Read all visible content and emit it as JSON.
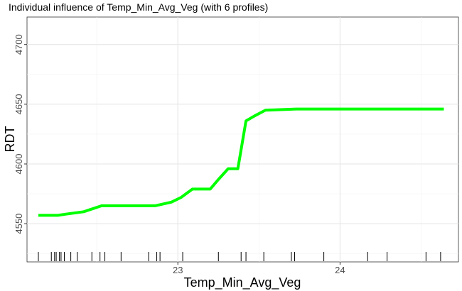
{
  "chart_data": {
    "type": "line",
    "title": "Individual influence of Temp_Min_Avg_Veg (with 6 profiles)",
    "xlabel": "Temp_Min_Avg_Veg",
    "ylabel": "RDT",
    "xlim": [
      22.07,
      24.73
    ],
    "ylim": [
      4518,
      4723
    ],
    "x_ticks": [
      23,
      24
    ],
    "x_tick_labels": [
      "23",
      "24"
    ],
    "x_minor_ticks": [
      22.5,
      23.5,
      24.5
    ],
    "y_ticks": [
      4550,
      4600,
      4650,
      4700
    ],
    "y_tick_labels": [
      "4550",
      "4600",
      "4650",
      "4700"
    ],
    "y_minor_ticks": [
      4525,
      4575,
      4625,
      4675
    ],
    "grid": true,
    "line_color": "#00ff00",
    "series": [
      {
        "x": [
          22.14,
          22.26,
          22.31,
          22.42,
          22.53,
          22.64,
          22.75,
          22.86,
          22.96,
          23.02,
          23.09,
          23.2,
          23.25,
          23.31,
          23.37,
          23.42,
          23.47,
          23.54,
          23.73,
          24.22,
          24.64
        ],
        "values": [
          4557,
          4557,
          4558,
          4560,
          4565,
          4565,
          4565,
          4565,
          4568,
          4572,
          4579,
          4579,
          4587,
          4596,
          4596,
          4636,
          4640,
          4645,
          4646,
          4646,
          4646
        ]
      }
    ],
    "rug": [
      22.14,
      22.22,
      22.24,
      22.25,
      22.27,
      22.28,
      22.3,
      22.34,
      22.38,
      22.47,
      22.52,
      22.55,
      22.65,
      22.82,
      22.87,
      22.89,
      23.03,
      23.25,
      23.39,
      23.42,
      23.53,
      23.7,
      23.72,
      23.9,
      24.17,
      24.29,
      24.53,
      24.62
    ]
  }
}
